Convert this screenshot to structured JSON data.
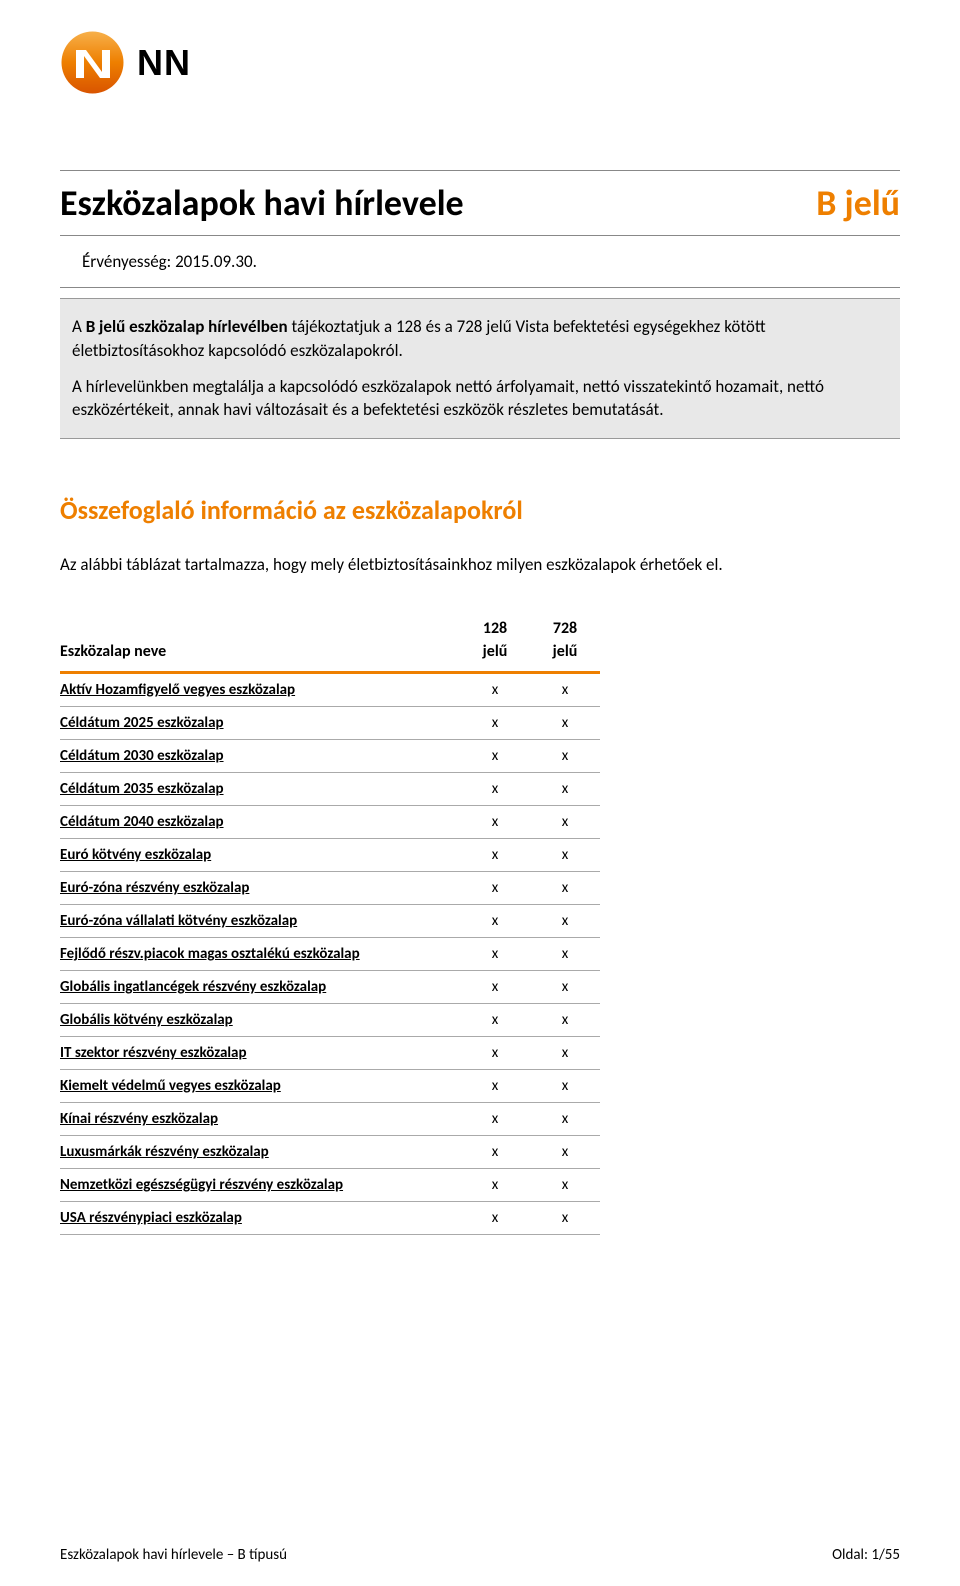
{
  "logo": {
    "text": "NN"
  },
  "title": {
    "main": "Eszközalapok havi hírlevele",
    "badge": "B jelű"
  },
  "validity": "Érvényesség: 2015.09.30.",
  "info": {
    "p1_a": "A ",
    "p1_b": "B jelű eszközalap hírlevélben",
    "p1_c": " tájékoztatjuk a 128 és a 728 jelű Vista befektetési egységekhez kötött életbiztosításokhoz kapcsolódó eszközalapokról.",
    "p2": "A hírlevelünkben megtalálja a kapcsolódó eszközalapok nettó árfolyamait, nettó visszatekintő hozamait, nettó eszközértékeit, annak havi változásait és a befektetési eszközök részletes bemutatását."
  },
  "section": {
    "title": "Összefoglaló információ az eszközalapokról",
    "sub": "Az alábbi  táblázat tartalmazza, hogy mely életbiztosításainkhoz milyen eszközalapok érhetőek el."
  },
  "table": {
    "col_name": "Eszközalap neve",
    "col1_top": "128",
    "col1_bot": "jelű",
    "col2_top": "728",
    "col2_bot": "jelű",
    "rows": [
      {
        "name": "Aktív Hozamfigyelő vegyes eszközalap",
        "c1": "x",
        "c2": "x"
      },
      {
        "name": "Céldátum 2025 eszközalap",
        "c1": "x",
        "c2": "x"
      },
      {
        "name": "Céldátum 2030 eszközalap",
        "c1": "x",
        "c2": "x"
      },
      {
        "name": "Céldátum 2035 eszközalap",
        "c1": "x",
        "c2": "x"
      },
      {
        "name": "Céldátum 2040 eszközalap",
        "c1": "x",
        "c2": "x"
      },
      {
        "name": "Euró kötvény eszközalap",
        "c1": "x",
        "c2": "x"
      },
      {
        "name": "Euró-zóna részvény eszközalap",
        "c1": "x",
        "c2": "x"
      },
      {
        "name": "Euró-zóna vállalati kötvény eszközalap",
        "c1": "x",
        "c2": "x"
      },
      {
        "name": "Fejlődő részv.piacok magas osztalékú eszközalap",
        "c1": "x",
        "c2": "x"
      },
      {
        "name": "Globális ingatlancégek részvény eszközalap",
        "c1": "x",
        "c2": "x"
      },
      {
        "name": "Globális kötvény eszközalap",
        "c1": "x",
        "c2": "x"
      },
      {
        "name": "IT szektor részvény eszközalap",
        "c1": "x",
        "c2": "x"
      },
      {
        "name": "Kiemelt védelmű vegyes eszközalap",
        "c1": "x",
        "c2": "x"
      },
      {
        "name": "Kínai részvény eszközalap",
        "c1": "x",
        "c2": "x"
      },
      {
        "name": "Luxusmárkák részvény eszközalap",
        "c1": "x",
        "c2": "x"
      },
      {
        "name": "Nemzetközi egészségügyi részvény eszközalap",
        "c1": "x",
        "c2": "x"
      },
      {
        "name": "USA részvénypiaci eszközalap",
        "c1": "x",
        "c2": "x"
      }
    ]
  },
  "footer": {
    "left": "Eszközalapok havi hírlevele – B típusú",
    "right": "Oldal: 1/55"
  },
  "colors": {
    "accent": "#ee7f00",
    "gradient_top": "#f39a1f",
    "gradient_bot": "#e55b00"
  }
}
